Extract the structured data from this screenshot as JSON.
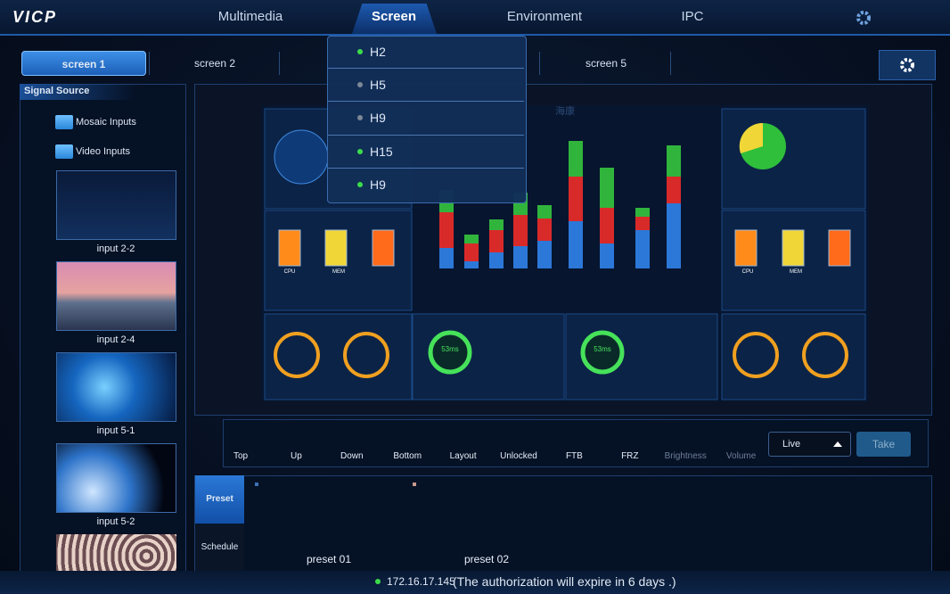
{
  "header": {
    "logo": "VICP",
    "tabs": [
      "Multimedia",
      "Screen",
      "Environment",
      "IPC"
    ],
    "active_tab": 1
  },
  "screens": {
    "tabs": [
      "screen 1",
      "screen 2",
      "screen 5"
    ],
    "active_tab": 0
  },
  "dropdown": {
    "items": [
      {
        "label": "H2",
        "online": true,
        "checked": true
      },
      {
        "label": "H5",
        "online": false,
        "checked": false
      },
      {
        "label": "H9",
        "online": false,
        "checked": false
      },
      {
        "label": "H15",
        "online": true,
        "checked": false
      },
      {
        "label": "H9",
        "online": true,
        "checked": false
      }
    ]
  },
  "sidebar": {
    "title": "Signal Source",
    "groups": [
      {
        "label": "Mosaic Inputs",
        "expanded": false
      },
      {
        "label": "Video Inputs",
        "expanded": true
      }
    ],
    "inputs": [
      "input 2-2",
      "input 2-4",
      "input 5-1",
      "input 5-2"
    ]
  },
  "preview": {
    "title": "海康",
    "gauges": [
      "CPU",
      "MEM",
      "CPU",
      "MEM"
    ],
    "latency": [
      "53ms",
      "53ms"
    ]
  },
  "toolbar": {
    "buttons": [
      {
        "label": "Top",
        "enabled": true
      },
      {
        "label": "Up",
        "enabled": true
      },
      {
        "label": "Down",
        "enabled": true
      },
      {
        "label": "Bottom",
        "enabled": true
      },
      {
        "label": "Layout",
        "enabled": true
      },
      {
        "label": "Unlocked",
        "enabled": true
      },
      {
        "label": "FTB",
        "enabled": true
      },
      {
        "label": "FRZ",
        "enabled": true
      },
      {
        "label": "Brightness",
        "enabled": false
      },
      {
        "label": "Volume",
        "enabled": false
      }
    ],
    "mode": "Live",
    "take": "Take"
  },
  "presets": {
    "tabs": [
      "Preset",
      "Schedule"
    ],
    "active_tab": 0,
    "items": [
      "preset 01",
      "preset 02"
    ]
  },
  "status": {
    "ip": "172.16.17.145",
    "message": "(The authorization will expire in 6 days .)"
  }
}
